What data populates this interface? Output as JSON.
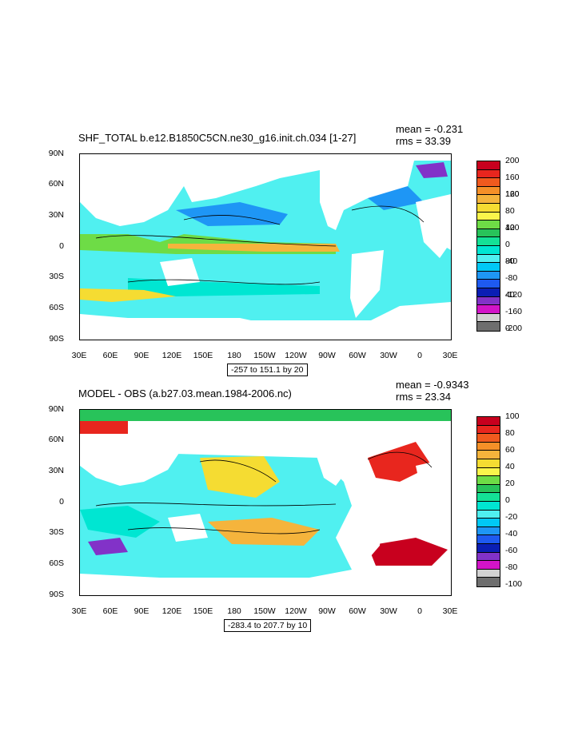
{
  "chart_data": [
    {
      "type": "heatmap",
      "title": "SHF_TOTAL b.e12.B1850C5CN.ne30_g16.init.ch.034 [1-27]",
      "mean_label": "mean = -0.231",
      "rms_label": "rms = 33.39",
      "x_ticks": [
        "30E",
        "60E",
        "90E",
        "120E",
        "150E",
        "180",
        "150W",
        "120W",
        "90W",
        "60W",
        "30W",
        "0",
        "30E"
      ],
      "y_ticks": [
        "90N",
        "60N",
        "30N",
        "0",
        "30S",
        "60S",
        "90S"
      ],
      "contour_info": "-257 to 151.1 by 20",
      "colorbar": {
        "labels": [
          "200",
          "160",
          "120",
          "80",
          "40",
          "0",
          "-40",
          "-80",
          "-120",
          "-160",
          "-200"
        ],
        "colors": [
          "#c8001e",
          "#e8261e",
          "#f05a1e",
          "#f59028",
          "#f5b43c",
          "#f5dc32",
          "#faf54b",
          "#6edc46",
          "#28c35a",
          "#14e196",
          "#00e6d2",
          "#50f0f0",
          "#00c8f5",
          "#1e96f5",
          "#1e5af0",
          "#0a1eb4",
          "#8232c8",
          "#d214c8",
          "#d2d2d2",
          "#6e6e6e"
        ]
      }
    },
    {
      "type": "heatmap",
      "title": "MODEL - OBS (a.b27.03.mean.1984-2006.nc)",
      "mean_label": "mean = -0.9343",
      "rms_label": "rms = 23.34",
      "x_ticks": [
        "30E",
        "60E",
        "90E",
        "120E",
        "150E",
        "180",
        "150W",
        "120W",
        "90W",
        "60W",
        "30W",
        "0",
        "30E"
      ],
      "y_ticks": [
        "90N",
        "60N",
        "30N",
        "0",
        "30S",
        "60S",
        "90S"
      ],
      "contour_info": "-283.4 to 207.7 by 10",
      "colorbar": {
        "labels": [
          "100",
          "80",
          "60",
          "40",
          "20",
          "0",
          "-20",
          "-40",
          "-60",
          "-80",
          "-100"
        ],
        "colors": [
          "#c8001e",
          "#e8261e",
          "#f05a1e",
          "#f59028",
          "#f5b43c",
          "#f5dc32",
          "#faf54b",
          "#6edc46",
          "#28c35a",
          "#14e196",
          "#00e6d2",
          "#50f0f0",
          "#00c8f5",
          "#1e96f5",
          "#1e5af0",
          "#0a1eb4",
          "#8232c8",
          "#d214c8",
          "#d2d2d2",
          "#6e6e6e"
        ]
      }
    }
  ]
}
